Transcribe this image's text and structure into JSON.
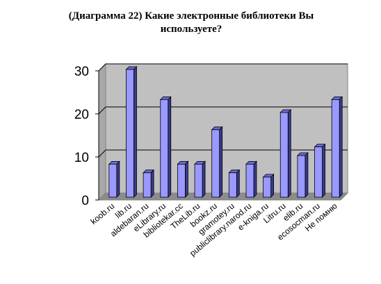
{
  "title_lines": [
    "(Диаграмма 22) Какие электронные библиотеки Вы",
    "используете?"
  ],
  "chart_data": {
    "type": "bar",
    "title": "(Диаграмма 22) Какие электронные библиотеки Вы используете?",
    "categories": [
      "koob.ru",
      "lib.ru",
      "aldebaran.ru",
      "eLibrary.ru",
      "bibliotekar.cc",
      "TheLib.ru",
      "bookz.ru",
      "gramotey.ru",
      "publiclibrary.narod.ru",
      "e-kniga.ru",
      "Litru.ru",
      "elib.ru",
      "ecosocman.ru",
      "Не помню"
    ],
    "values": [
      8,
      30,
      6,
      23,
      8,
      8,
      16,
      6,
      8,
      5,
      20,
      10,
      12,
      23
    ],
    "ylim": [
      0,
      30
    ],
    "yticks": [
      "0",
      "10",
      "20",
      "30"
    ],
    "grid": true,
    "style": "3d-column",
    "bar_color": "#9999ff",
    "wall_color": "#c0c0c0"
  }
}
